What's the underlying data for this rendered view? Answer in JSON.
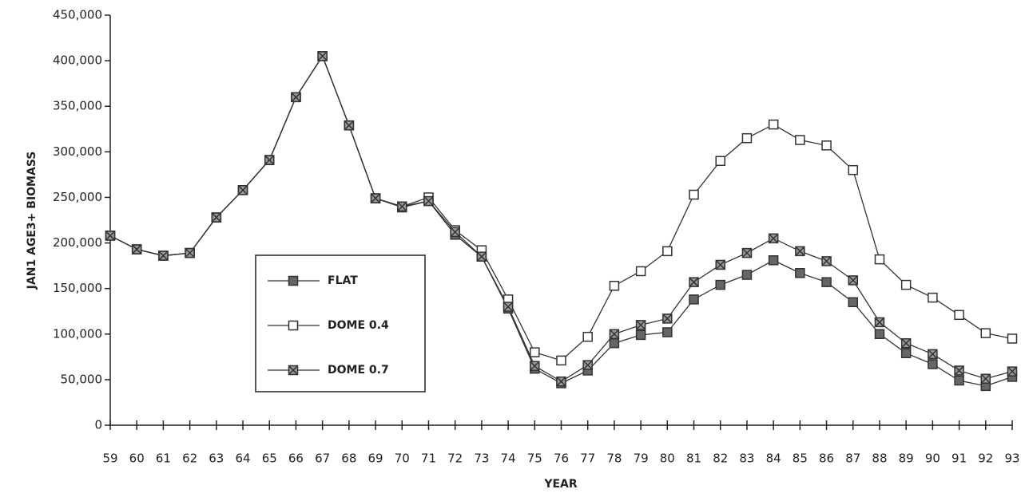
{
  "chart_data": {
    "type": "line",
    "x_label": "YEAR",
    "y_label": "JAN1 AGE3+ BIOMASS",
    "categories": [
      "59",
      "60",
      "61",
      "62",
      "63",
      "64",
      "65",
      "66",
      "67",
      "68",
      "69",
      "70",
      "71",
      "72",
      "73",
      "74",
      "75",
      "76",
      "77",
      "78",
      "79",
      "80",
      "81",
      "82",
      "83",
      "84",
      "85",
      "86",
      "87",
      "88",
      "89",
      "90",
      "91",
      "92",
      "93"
    ],
    "series": [
      {
        "name": "FLAT",
        "color": "#333333",
        "marker": "filled",
        "values": [
          208000,
          193000,
          186000,
          189000,
          228000,
          258000,
          291000,
          360000,
          405000,
          329000,
          249000,
          239000,
          246000,
          209000,
          185000,
          128000,
          62000,
          46000,
          60000,
          90000,
          99000,
          102000,
          138000,
          154000,
          165000,
          181000,
          167000,
          157000,
          135000,
          100000,
          79000,
          67000,
          49000,
          43000,
          53000
        ]
      },
      {
        "name": "DOME 0.4",
        "color": "#333333",
        "marker": "open",
        "values": [
          208000,
          193000,
          186000,
          189000,
          228000,
          258000,
          291000,
          360000,
          405000,
          329000,
          249000,
          240000,
          250000,
          214000,
          192000,
          138000,
          80000,
          71000,
          97000,
          153000,
          169000,
          191000,
          253000,
          290000,
          315000,
          330000,
          313000,
          307000,
          280000,
          182000,
          154000,
          140000,
          121000,
          101000,
          95000
        ]
      },
      {
        "name": "DOME 0.7",
        "color": "#333333",
        "marker": "cross",
        "values": [
          208000,
          193000,
          186000,
          189000,
          228000,
          258000,
          291000,
          360000,
          405000,
          329000,
          249000,
          240000,
          246000,
          212000,
          185000,
          130000,
          65000,
          48000,
          66000,
          100000,
          110000,
          117000,
          157000,
          176000,
          189000,
          205000,
          191000,
          180000,
          159000,
          113000,
          90000,
          78000,
          60000,
          51000,
          59000
        ]
      }
    ],
    "ylim": [
      0,
      450000
    ],
    "yticks": [
      0,
      {
        "value": 50000,
        "label": "50,000"
      },
      {
        "value": 100000,
        "label": "100,000"
      },
      {
        "value": 150000,
        "label": "150,000"
      },
      {
        "value": 200000,
        "label": "200,000"
      },
      {
        "value": 250000,
        "label": "250,000"
      },
      {
        "value": 300000,
        "label": "300,000"
      },
      {
        "value": 350000,
        "label": "350,000"
      },
      {
        "value": 400000,
        "label": "400,000"
      },
      {
        "value": 450000,
        "label": "450,000"
      }
    ]
  }
}
